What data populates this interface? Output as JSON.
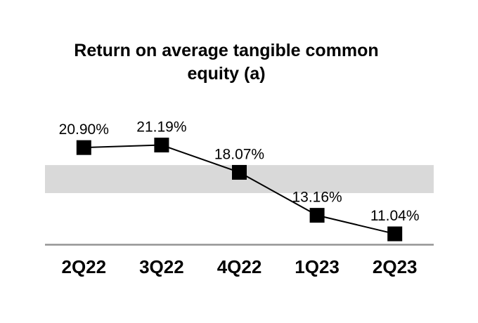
{
  "chart_data": {
    "type": "line",
    "title": "Return on average tangible common equity (a)",
    "title_lines": [
      "Return on average tangible common",
      "equity (a)"
    ],
    "categories": [
      "2Q22",
      "3Q22",
      "4Q22",
      "1Q23",
      "2Q23"
    ],
    "series": [
      {
        "name": "Return on average tangible common equity",
        "values": [
          20.9,
          21.19,
          18.07,
          13.16,
          11.04
        ],
        "labels": [
          "20.90%",
          "21.19%",
          "18.07%",
          "13.16%",
          "11.04%"
        ]
      }
    ],
    "xlabel": "",
    "ylabel": "",
    "ylim": [
      9.8,
      23.0
    ],
    "grid": false,
    "legend_position": "none",
    "marker_shape": "square",
    "highlight_band": {
      "value_from": 15.7,
      "value_to": 18.9,
      "color": "#d9d9d9"
    },
    "colors": {
      "line": "#000000",
      "marker": "#000000",
      "data_label": "#000000",
      "axis_line": "#949494",
      "x_label": "#000000",
      "background": "#ffffff"
    }
  }
}
